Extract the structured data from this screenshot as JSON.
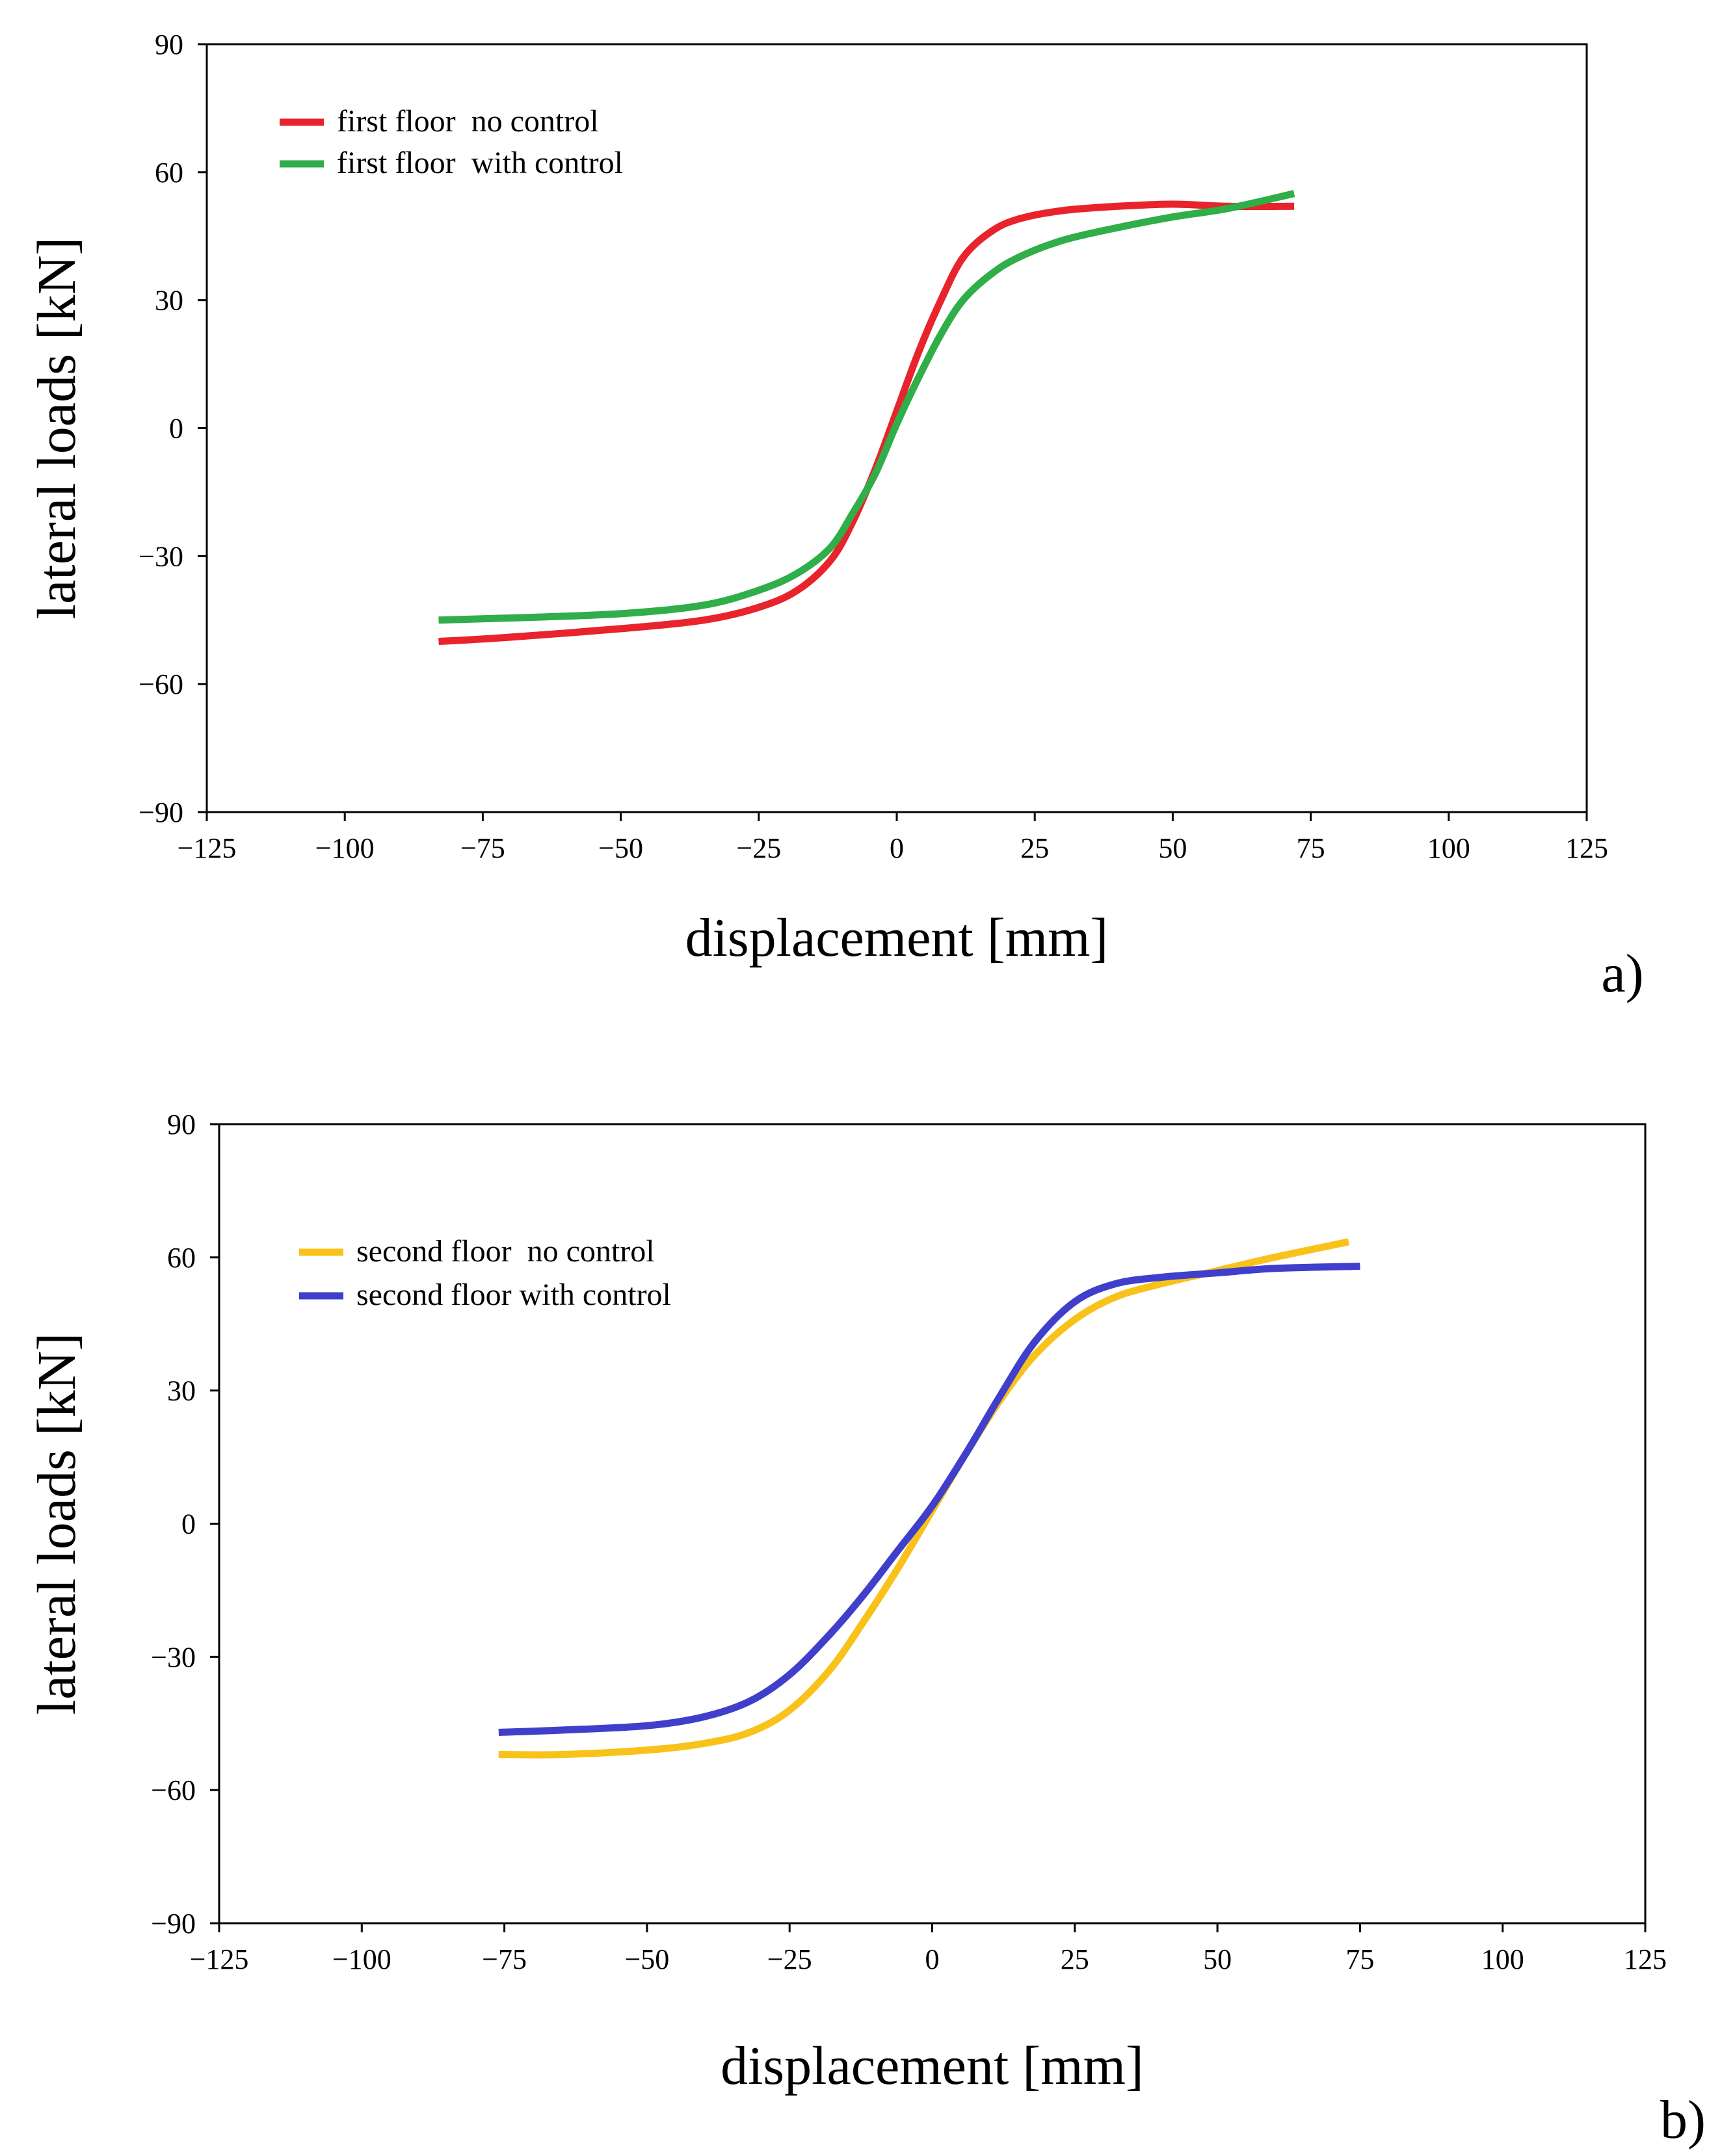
{
  "chart_data": [
    {
      "type": "line",
      "panel_label": "a)",
      "xlabel": "displacement [mm]",
      "ylabel": "lateral loads [kN]",
      "xlim": [
        -125,
        125
      ],
      "ylim": [
        -90,
        90
      ],
      "x_ticks": [
        -125,
        -100,
        -75,
        -50,
        -25,
        0,
        25,
        50,
        75,
        100,
        125
      ],
      "x_tick_labels": [
        "−125",
        "−100",
        "−75",
        "−50",
        "−25",
        "0",
        "25",
        "50",
        "75",
        "100",
        "125"
      ],
      "y_ticks": [
        90,
        60,
        30,
        0,
        -30,
        -60,
        -90
      ],
      "y_tick_labels": [
        "90",
        "60",
        "30",
        "0",
        "−30",
        "−60",
        "−90"
      ],
      "legend_position": "top-left",
      "series": [
        {
          "name": "first floor  no control",
          "color": "#e8232b",
          "x": [
            -83,
            -70,
            -50,
            -35,
            -25,
            -18,
            -12,
            -8,
            -4,
            0,
            4,
            8,
            12,
            17,
            22,
            30,
            40,
            50,
            60,
            72
          ],
          "y": [
            -50,
            -49,
            -47,
            -45,
            -42,
            -38,
            -31,
            -22,
            -10,
            4,
            18,
            30,
            40,
            46,
            49,
            51,
            52,
            52.5,
            52,
            52
          ]
        },
        {
          "name": "first floor  with control",
          "color": "#2fae49",
          "x": [
            -83,
            -70,
            -50,
            -35,
            -25,
            -18,
            -12,
            -8,
            -4,
            0,
            4,
            8,
            12,
            17,
            22,
            30,
            40,
            50,
            60,
            72
          ],
          "y": [
            -45,
            -44.5,
            -43.5,
            -41.5,
            -38,
            -34,
            -28,
            -20,
            -11,
            1,
            12,
            22,
            30,
            36,
            40,
            44,
            47,
            49.5,
            51.5,
            55
          ]
        }
      ]
    },
    {
      "type": "line",
      "panel_label": "b)",
      "xlabel": "displacement [mm]",
      "ylabel": "lateral loads [kN]",
      "xlim": [
        -125,
        125
      ],
      "ylim": [
        -90,
        90
      ],
      "x_ticks": [
        -125,
        -100,
        -75,
        -50,
        -25,
        0,
        25,
        50,
        75,
        100,
        125
      ],
      "x_tick_labels": [
        "−125",
        "−100",
        "−75",
        "−50",
        "−25",
        "0",
        "25",
        "50",
        "75",
        "100",
        "125"
      ],
      "y_ticks": [
        90,
        60,
        30,
        0,
        -30,
        -60,
        -90
      ],
      "y_tick_labels": [
        "90",
        "60",
        "30",
        "0",
        "−30",
        "−60",
        "−90"
      ],
      "legend_position": "top-left",
      "series": [
        {
          "name": "second floor  no control",
          "color": "#f9c21a",
          "x": [
            -76,
            -65,
            -50,
            -40,
            -32,
            -25,
            -18,
            -12,
            -6,
            0,
            6,
            12,
            18,
            25,
            32,
            40,
            50,
            60,
            73
          ],
          "y": [
            -52,
            -52,
            -51,
            -49.5,
            -47,
            -42,
            -33,
            -22,
            -10,
            3,
            16,
            28,
            38,
            46,
            51,
            54,
            57,
            60,
            63.5
          ]
        },
        {
          "name": "second floor with control",
          "color": "#3f3fcc",
          "x": [
            -76,
            -65,
            -50,
            -40,
            -32,
            -25,
            -18,
            -12,
            -6,
            0,
            6,
            12,
            18,
            25,
            32,
            40,
            50,
            60,
            75
          ],
          "y": [
            -47,
            -46.5,
            -45.5,
            -43.5,
            -40,
            -34,
            -25,
            -16,
            -6,
            4,
            16,
            29,
            41,
            50,
            54,
            55.5,
            56.5,
            57.5,
            58
          ]
        }
      ]
    }
  ]
}
